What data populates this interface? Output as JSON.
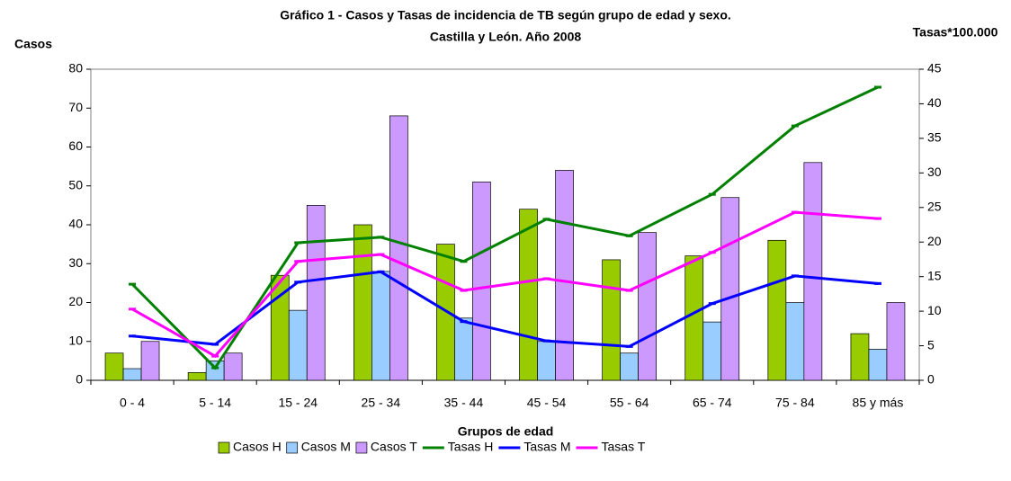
{
  "chart_data": {
    "type": "bar_line",
    "title": [
      "Gráfico 1 - Casos y Tasas de incidencia de TB según grupo de edad y sexo.",
      "Castilla y León. Año 2008"
    ],
    "y_label": "Casos",
    "y2_label": "Tasas*100.000",
    "x_label": "Grupos de edad",
    "categories": [
      "0 - 4",
      "5 - 14",
      "15 - 24",
      "25 - 34",
      "35 - 44",
      "45 - 54",
      "55 - 64",
      "65 - 74",
      "75 - 84",
      "85 y más"
    ],
    "ylim": [
      0,
      80
    ],
    "yticks": [
      0,
      10,
      20,
      30,
      40,
      50,
      60,
      70,
      80
    ],
    "y2lim": [
      0,
      45
    ],
    "y2ticks": [
      0,
      5,
      10,
      15,
      20,
      25,
      30,
      35,
      40,
      45
    ],
    "series": [
      {
        "name": "Casos H",
        "kind": "bar",
        "color": "#99cc00",
        "values": [
          7,
          2,
          27,
          40,
          35,
          44,
          31,
          32,
          36,
          12
        ]
      },
      {
        "name": "Casos M",
        "kind": "bar",
        "color": "#99ccff",
        "values": [
          3,
          5,
          18,
          28,
          16,
          10,
          7,
          15,
          20,
          8
        ]
      },
      {
        "name": "Casos T",
        "kind": "bar",
        "color": "#cc99ff",
        "values": [
          10,
          7,
          45,
          68,
          51,
          54,
          38,
          47,
          56,
          20
        ]
      },
      {
        "name": "Tasas H",
        "kind": "line",
        "axis": "y2",
        "color": "#008000",
        "values": [
          13.9,
          1.8,
          19.9,
          20.7,
          17.2,
          23.3,
          20.9,
          26.9,
          36.8,
          42.4
        ]
      },
      {
        "name": "Tasas M",
        "kind": "line",
        "axis": "y2",
        "color": "#0000ff",
        "values": [
          6.4,
          5.2,
          14.2,
          15.7,
          8.5,
          5.7,
          4.9,
          11.1,
          15.1,
          14.0
        ]
      },
      {
        "name": "Tasas T",
        "kind": "line",
        "axis": "y2",
        "color": "#ff00ff",
        "values": [
          10.3,
          3.5,
          17.2,
          18.2,
          13.0,
          14.7,
          13.0,
          18.5,
          24.3,
          23.4
        ]
      }
    ]
  }
}
